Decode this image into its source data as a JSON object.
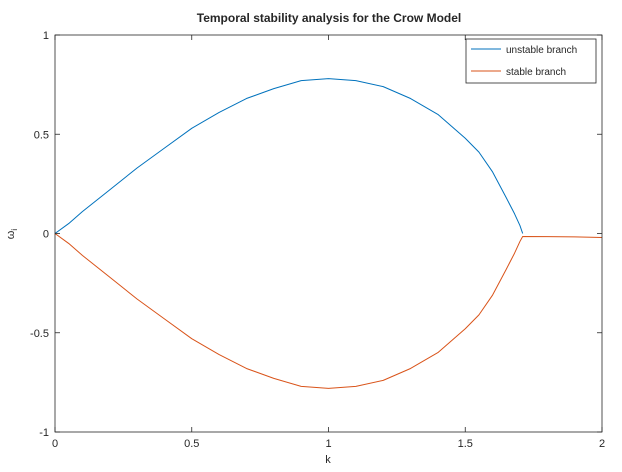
{
  "chart_data": {
    "type": "line",
    "title": "Temporal stability analysis for the Crow Model",
    "xlabel": "k",
    "ylabel": "ω",
    "ylabel_subscript": "i",
    "xlim": [
      0,
      2
    ],
    "ylim": [
      -1,
      1
    ],
    "x_ticks": [
      {
        "value": 0,
        "label": "0"
      },
      {
        "value": 0.5,
        "label": "0.5"
      },
      {
        "value": 1,
        "label": "1"
      },
      {
        "value": 1.5,
        "label": "1.5"
      },
      {
        "value": 2,
        "label": "2"
      }
    ],
    "y_ticks": [
      {
        "value": -1,
        "label": "-1"
      },
      {
        "value": -0.5,
        "label": "-0.5"
      },
      {
        "value": 0,
        "label": "0"
      },
      {
        "value": 0.5,
        "label": "0.5"
      },
      {
        "value": 1,
        "label": "1"
      }
    ],
    "grid": false,
    "legend_position": "top-right",
    "series": [
      {
        "name": "unstable branch",
        "color": "#0072bd",
        "x": [
          0,
          0.05,
          0.1,
          0.2,
          0.3,
          0.4,
          0.5,
          0.6,
          0.7,
          0.8,
          0.9,
          1.0,
          1.1,
          1.2,
          1.3,
          1.4,
          1.5,
          1.55,
          1.6,
          1.65,
          1.68,
          1.7,
          1.71
        ],
        "y": [
          0,
          0.05,
          0.11,
          0.22,
          0.33,
          0.43,
          0.53,
          0.61,
          0.68,
          0.73,
          0.77,
          0.78,
          0.77,
          0.74,
          0.68,
          0.6,
          0.48,
          0.41,
          0.31,
          0.18,
          0.1,
          0.04,
          0
        ]
      },
      {
        "name": "stable branch",
        "color": "#d95319",
        "x": [
          0,
          0.05,
          0.1,
          0.2,
          0.3,
          0.4,
          0.5,
          0.6,
          0.7,
          0.8,
          0.9,
          1.0,
          1.1,
          1.2,
          1.3,
          1.4,
          1.5,
          1.55,
          1.6,
          1.65,
          1.68,
          1.7,
          1.71,
          1.8,
          1.9,
          2.0
        ],
        "y": [
          0,
          -0.05,
          -0.11,
          -0.22,
          -0.33,
          -0.43,
          -0.53,
          -0.61,
          -0.68,
          -0.73,
          -0.77,
          -0.78,
          -0.77,
          -0.74,
          -0.68,
          -0.6,
          -0.48,
          -0.41,
          -0.31,
          -0.18,
          -0.1,
          -0.04,
          -0.015,
          -0.016,
          -0.017,
          -0.02
        ]
      }
    ]
  }
}
